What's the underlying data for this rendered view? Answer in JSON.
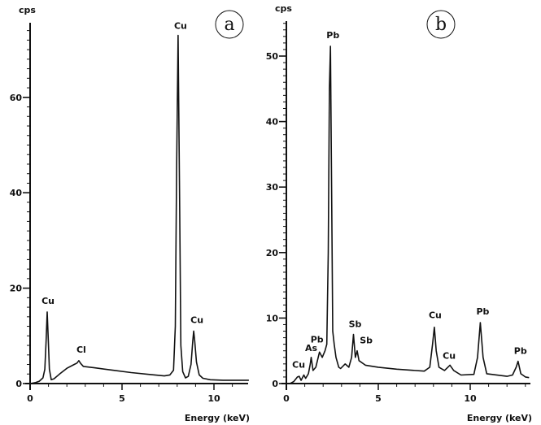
{
  "chart_data": [
    {
      "type": "line",
      "panel_label": "a",
      "xlabel": "Energy (keV)",
      "ylabel": "cps",
      "xlim": [
        0,
        11.9
      ],
      "ylim": [
        0,
        75
      ],
      "x_ticks": [
        0,
        5,
        10
      ],
      "y_ticks": [
        0,
        20,
        40,
        60
      ],
      "grid": false,
      "color": "#111111",
      "series": [
        {
          "x": [
            0,
            0.3,
            0.5,
            0.7,
            0.8,
            0.87,
            0.93,
            0.99,
            1.05,
            1.15,
            1.3,
            1.6,
            2.0,
            2.4,
            2.55,
            2.65,
            2.75,
            2.9,
            3.5,
            4.5,
            5.5,
            6.5,
            7.3,
            7.6,
            7.8,
            7.9,
            7.97,
            8.05,
            8.13,
            8.2,
            8.3,
            8.45,
            8.6,
            8.75,
            8.85,
            8.9,
            8.95,
            9.05,
            9.2,
            9.4,
            9.8,
            10.5,
            11.9
          ],
          "y": [
            0,
            0.2,
            0.5,
            1.2,
            3,
            9,
            15,
            9,
            3,
            0.8,
            1,
            2,
            3.2,
            4,
            4.3,
            4.8,
            4.2,
            3.6,
            3.3,
            2.8,
            2.3,
            1.9,
            1.6,
            1.8,
            2.8,
            12,
            45,
            73,
            40,
            8,
            2.5,
            1.2,
            1.5,
            4,
            9,
            11,
            9,
            4.5,
            1.8,
            1.1,
            0.8,
            0.7,
            0.7
          ]
        }
      ],
      "annotations": [
        {
          "text": "Cu",
          "energy": 0.93,
          "cps": 15
        },
        {
          "text": "Cl",
          "energy": 2.65,
          "cps": 4.8
        },
        {
          "text": "Cu",
          "energy": 8.05,
          "cps": 73
        },
        {
          "text": "Cu",
          "energy": 8.9,
          "cps": 11
        }
      ]
    },
    {
      "type": "line",
      "panel_label": "b",
      "xlabel": "Energy (keV)",
      "ylabel": "cps",
      "xlim": [
        0,
        13.2
      ],
      "ylim": [
        0,
        55
      ],
      "x_ticks": [
        0,
        5,
        10
      ],
      "y_ticks": [
        0,
        10,
        20,
        30,
        40,
        50
      ],
      "grid": false,
      "color": "#111111",
      "series": [
        {
          "x": [
            0,
            0.2,
            0.4,
            0.6,
            0.7,
            0.8,
            0.95,
            1.05,
            1.2,
            1.3,
            1.35,
            1.45,
            1.6,
            1.8,
            1.95,
            2.1,
            2.2,
            2.28,
            2.34,
            2.4,
            2.46,
            2.52,
            2.6,
            2.7,
            2.85,
            2.95,
            3.2,
            3.4,
            3.55,
            3.65,
            3.75,
            3.85,
            3.95,
            4.3,
            5,
            6,
            7.5,
            7.8,
            7.95,
            8.05,
            8.15,
            8.3,
            8.6,
            8.9,
            9.1,
            9.5,
            10.2,
            10.4,
            10.55,
            10.7,
            10.9,
            12,
            12.3,
            12.5,
            12.6,
            12.75,
            13.0,
            13.2
          ],
          "y": [
            0,
            0,
            0.3,
            1,
            1.1,
            0.5,
            1.3,
            0.8,
            1.5,
            3,
            4,
            2,
            2.5,
            4.8,
            4,
            5,
            6,
            20,
            45,
            51.5,
            30,
            8,
            6,
            4,
            2.5,
            2.3,
            3,
            2.5,
            4,
            7.5,
            4,
            5,
            3.5,
            2.8,
            2.5,
            2.2,
            1.9,
            2.5,
            6,
            8.6,
            5,
            2.5,
            2.0,
            2.8,
            2,
            1.3,
            1.4,
            4,
            9.3,
            4,
            1.5,
            1.1,
            1.3,
            2.5,
            3.4,
            1.5,
            1.0,
            0.9
          ]
        }
      ],
      "annotations": [
        {
          "text": "Cu",
          "energy": 0.8,
          "cps": 1.3
        },
        {
          "text": "As",
          "energy": 1.35,
          "cps": 4
        },
        {
          "text": "Pb",
          "energy": 1.8,
          "cps": 4.8
        },
        {
          "text": "Pb",
          "energy": 2.4,
          "cps": 51.5
        },
        {
          "text": "Sb",
          "energy": 3.65,
          "cps": 7.5
        },
        {
          "text": "Sb",
          "energy": 3.9,
          "cps": 5
        },
        {
          "text": "Cu",
          "energy": 8.05,
          "cps": 8.6
        },
        {
          "text": "Cu",
          "energy": 8.9,
          "cps": 2.8
        },
        {
          "text": "Pb",
          "energy": 10.55,
          "cps": 9.3
        },
        {
          "text": "Pb",
          "energy": 12.6,
          "cps": 3.4
        }
      ]
    }
  ]
}
